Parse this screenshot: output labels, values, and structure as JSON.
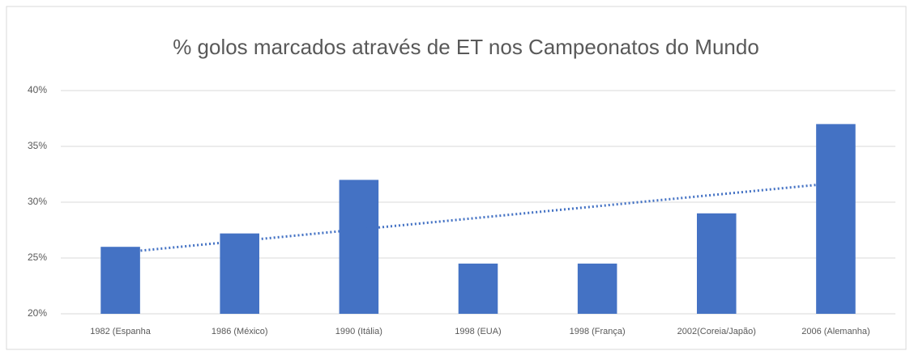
{
  "chart_data": {
    "type": "bar",
    "title": "% golos marcados através de ET nos Campeonatos do Mundo",
    "categories": [
      "1982 (Espanha",
      "1986 (México)",
      "1990 (Itália)",
      "1998 (EUA)",
      "1998 (França)",
      "2002(Coreia/Japão)",
      "2006 (Alemanha)"
    ],
    "values": [
      26,
      27.2,
      32,
      24.5,
      24.5,
      29,
      37
    ],
    "color": "#4472c4",
    "ylim": [
      20,
      40
    ],
    "yticks": [
      {
        "value": 20,
        "label": "20%"
      },
      {
        "value": 25,
        "label": "25%"
      },
      {
        "value": 30,
        "label": "30%"
      },
      {
        "value": 35,
        "label": "35%"
      },
      {
        "value": 40,
        "label": "40%"
      }
    ],
    "grid": true,
    "trendline": true
  }
}
